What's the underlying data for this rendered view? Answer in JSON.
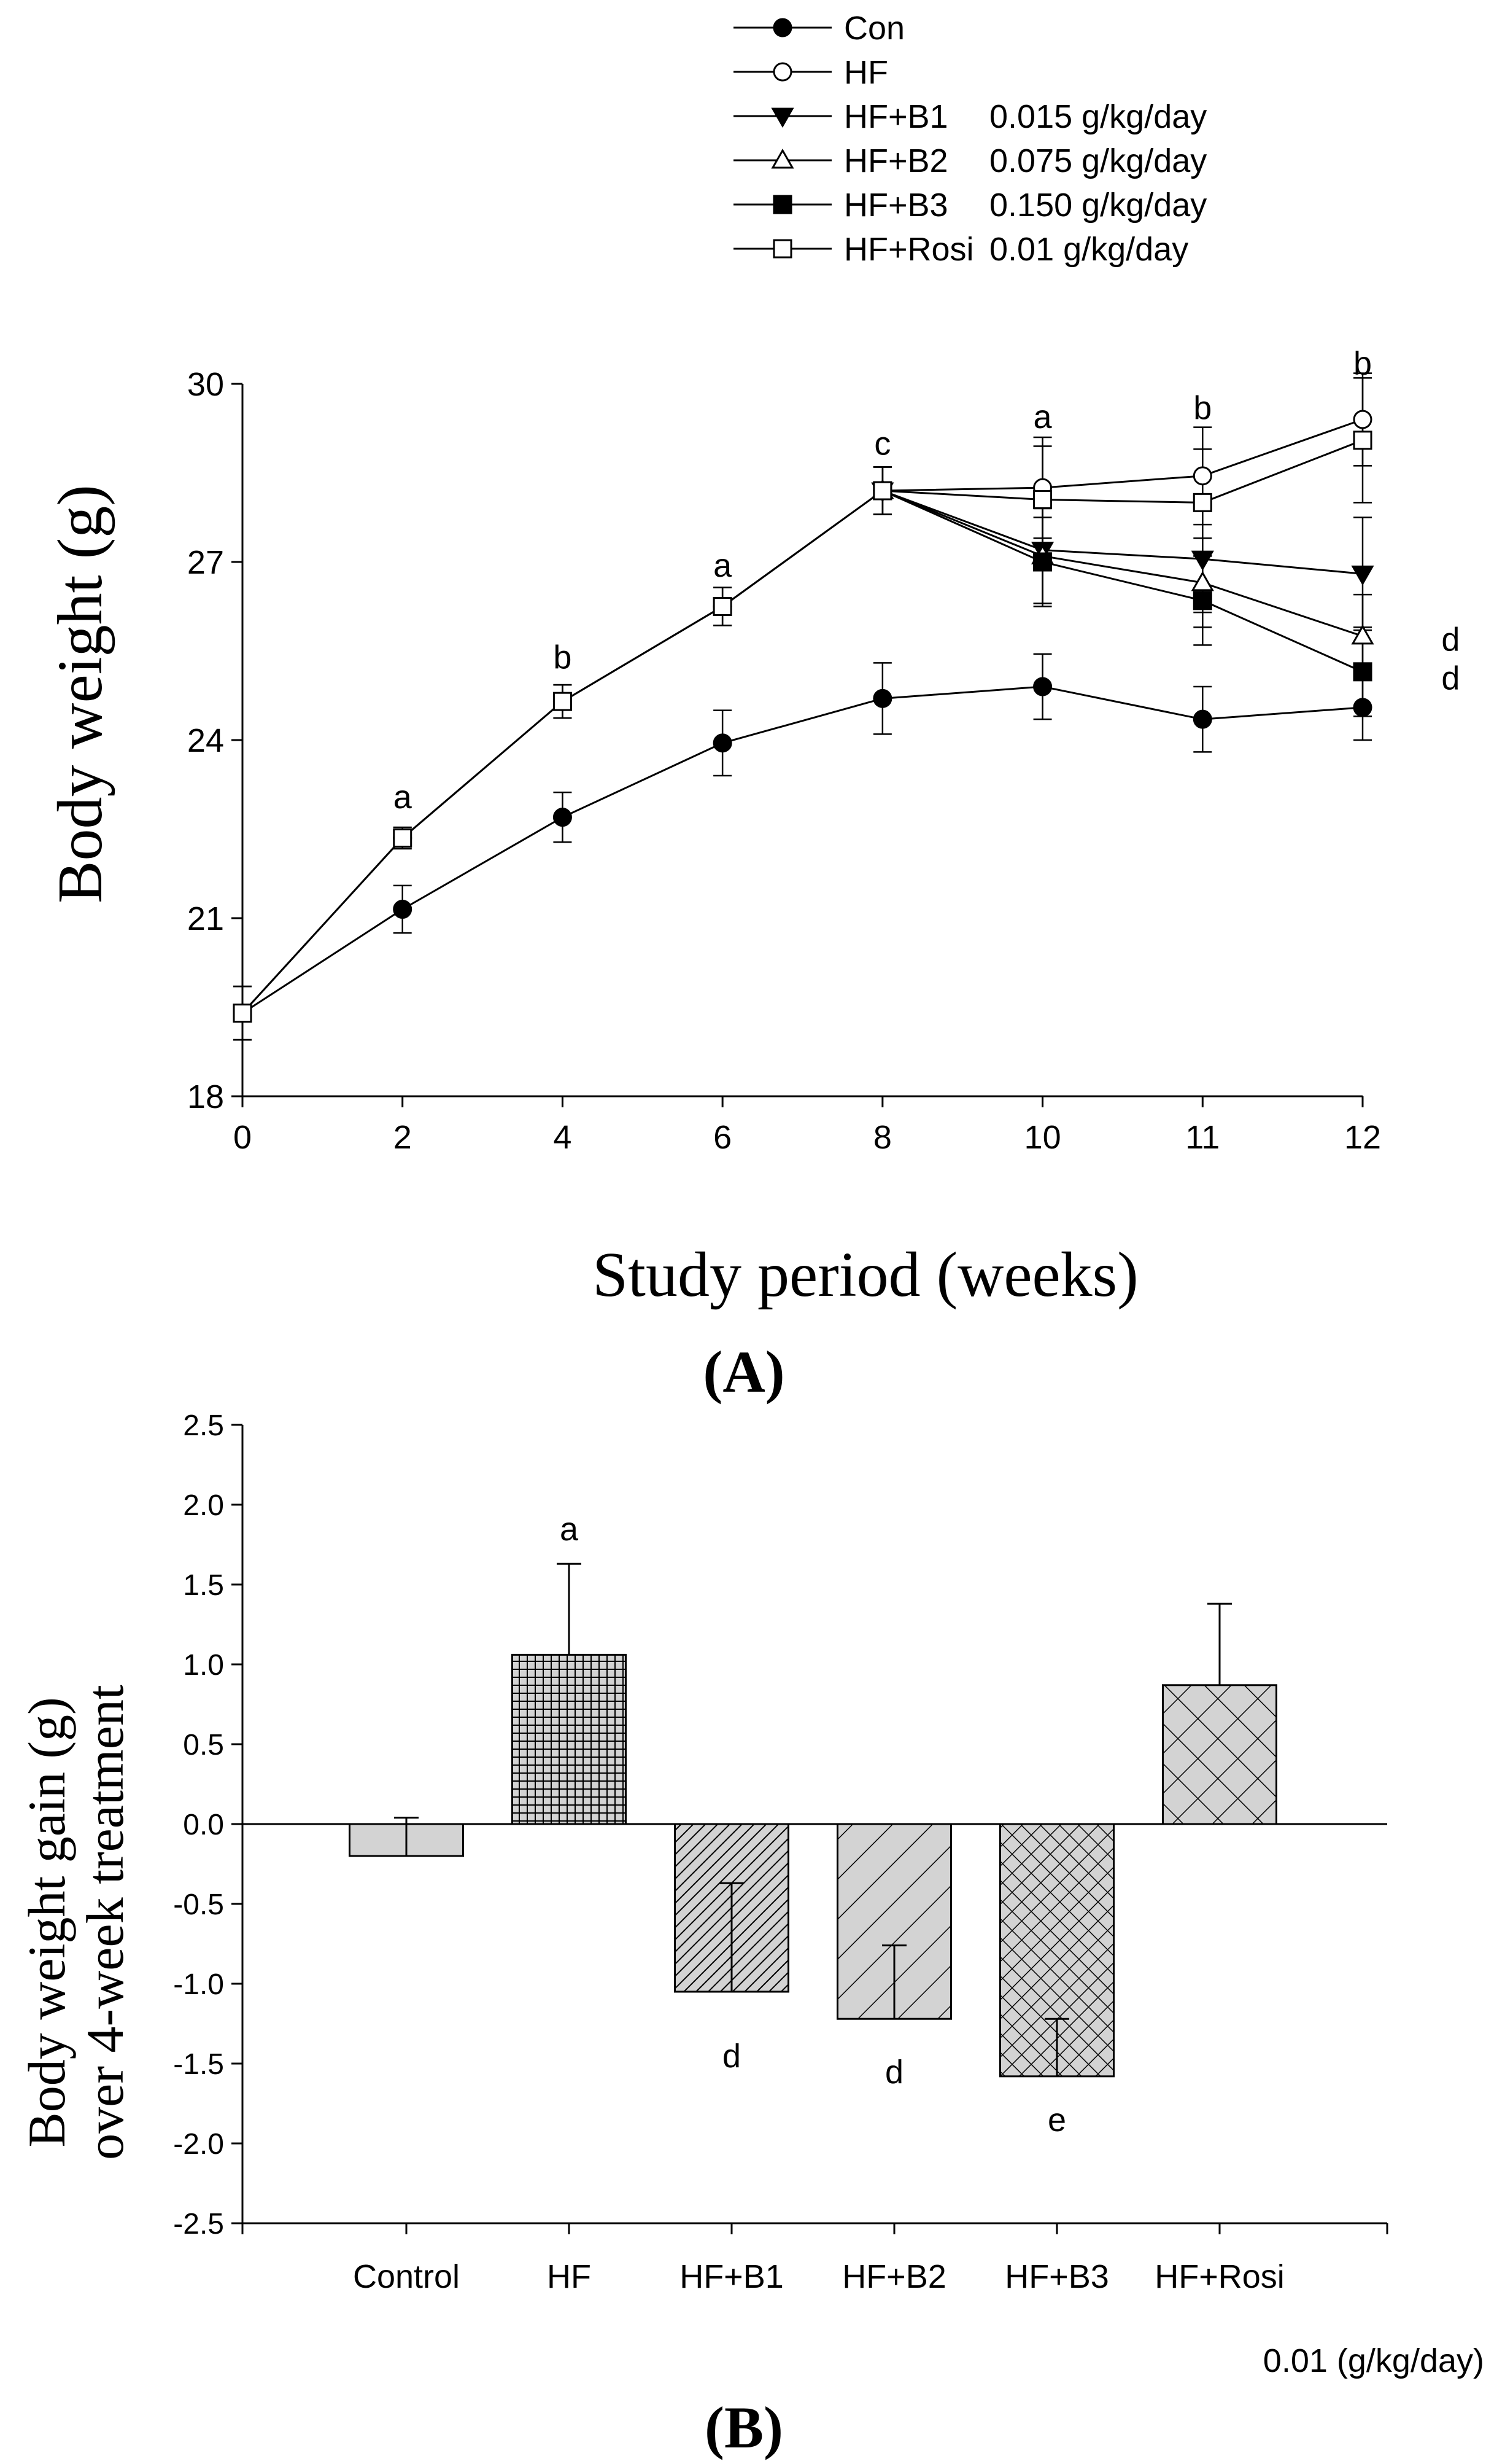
{
  "chart_data": [
    {
      "panel_label": "(A)",
      "type": "line",
      "xlabel": "Study period (weeks)",
      "ylabel": "Body weight (g)",
      "x_ticks": [
        "0",
        "2",
        "4",
        "6",
        "8",
        "10",
        "11",
        "12"
      ],
      "ylim": [
        18,
        30
      ],
      "y_ticks": [
        "18",
        "21",
        "24",
        "27",
        "30"
      ],
      "legend_position": "top",
      "legend": [
        {
          "label": "Con",
          "dose": "",
          "marker": "filled-circle"
        },
        {
          "label": "HF",
          "dose": "",
          "marker": "open-circle"
        },
        {
          "label": "HF+B1",
          "dose": "0.015 g/kg/day",
          "marker": "filled-triangle-down"
        },
        {
          "label": "HF+B2",
          "dose": "0.075 g/kg/day",
          "marker": "open-triangle-up"
        },
        {
          "label": "HF+B3",
          "dose": "0.150 g/kg/day",
          "marker": "filled-square"
        },
        {
          "label": "HF+Rosi",
          "dose": "0.01 g/kg/day",
          "marker": "open-square"
        }
      ],
      "series": [
        {
          "name": "Con",
          "x": [
            0,
            2,
            4,
            6,
            8,
            10,
            11,
            12
          ],
          "y": [
            19.4,
            21.15,
            22.7,
            23.95,
            24.7,
            24.9,
            24.35,
            24.55
          ],
          "err": [
            0.45,
            0.4,
            0.42,
            0.55,
            0.6,
            0.55,
            0.55,
            0.55
          ]
        },
        {
          "name": "HF",
          "x": [
            0,
            2,
            4,
            6,
            8,
            10,
            11,
            12
          ],
          "y": [
            19.4,
            22.35,
            24.65,
            26.25,
            28.2,
            28.25,
            28.45,
            29.4
          ],
          "err": [
            0.45,
            0.18,
            0.28,
            0.32,
            0.4,
            0.85,
            0.82,
            0.78
          ]
        },
        {
          "name": "HF+B1",
          "x": [
            8,
            10,
            11,
            12
          ],
          "y": [
            28.2,
            27.2,
            27.05,
            26.8
          ],
          "err": [
            0.4,
            0.9,
            0.9,
            0.95
          ]
        },
        {
          "name": "HF+B2",
          "x": [
            8,
            10,
            11,
            12
          ],
          "y": [
            28.2,
            27.1,
            26.65,
            25.75
          ],
          "err": [
            0.4,
            0.8,
            0.75,
            0.7
          ]
        },
        {
          "name": "HF+B3",
          "x": [
            8,
            10,
            11,
            12
          ],
          "y": [
            28.2,
            27.0,
            26.35,
            25.15
          ],
          "err": [
            0.4,
            0.75,
            0.75,
            0.75
          ]
        },
        {
          "name": "HF+Rosi",
          "x": [
            0,
            2,
            4,
            6,
            8,
            10,
            11,
            12
          ],
          "y": [
            19.4,
            22.35,
            24.65,
            26.25,
            28.2,
            28.05,
            28.0,
            29.05
          ],
          "err": [
            0.45,
            0.18,
            0.28,
            0.32,
            0.4,
            0.9,
            0.9,
            1.05
          ]
        }
      ],
      "annotations": [
        {
          "x": 2,
          "y": 23.05,
          "text": "a"
        },
        {
          "x": 4,
          "y": 25.4,
          "text": "b"
        },
        {
          "x": 6,
          "y": 26.95,
          "text": "a"
        },
        {
          "x": 8,
          "y": 29.0,
          "text": "c"
        },
        {
          "x": 10,
          "y": 29.45,
          "text": "a"
        },
        {
          "x": 11,
          "y": 29.6,
          "text": "b"
        },
        {
          "x": 12,
          "y": 30.35,
          "text": "b"
        },
        {
          "x": 12.55,
          "y": 25.7,
          "text": "d"
        },
        {
          "x": 12.55,
          "y": 25.05,
          "text": "d"
        }
      ]
    },
    {
      "panel_label": "(B)",
      "type": "bar",
      "ylabel_line1": "Body weight gain (g)",
      "ylabel_line2": "over 4-week treatment",
      "categories": [
        "Control",
        "HF",
        "HF+B1",
        "HF+B2",
        "HF+B3",
        "HF+Rosi"
      ],
      "dose_note": "0.01 (g/kg/day)",
      "values": [
        -0.2,
        1.06,
        -1.05,
        -1.22,
        -1.58,
        0.87
      ],
      "errors": [
        0.24,
        0.57,
        0.68,
        0.46,
        0.36,
        0.51
      ],
      "patterns": [
        "solid",
        "grid",
        "diagonal-dense",
        "diagonal-wide",
        "crosshatch-dense",
        "crosshatch-wide"
      ],
      "bar_fill": "#d3d3d3",
      "letters": [
        {
          "index": 1,
          "y": 1.85,
          "text": "a"
        },
        {
          "index": 2,
          "y": -1.45,
          "text": "d"
        },
        {
          "index": 3,
          "y": -1.55,
          "text": "d"
        },
        {
          "index": 4,
          "y": -1.85,
          "text": "e"
        }
      ],
      "ylim": [
        -2.5,
        2.5
      ],
      "y_ticks": [
        "-2.5",
        "-2.0",
        "-1.5",
        "-1.0",
        "-0.5",
        "0.0",
        "0.5",
        "1.0",
        "1.5",
        "2.0",
        "2.5"
      ]
    }
  ]
}
